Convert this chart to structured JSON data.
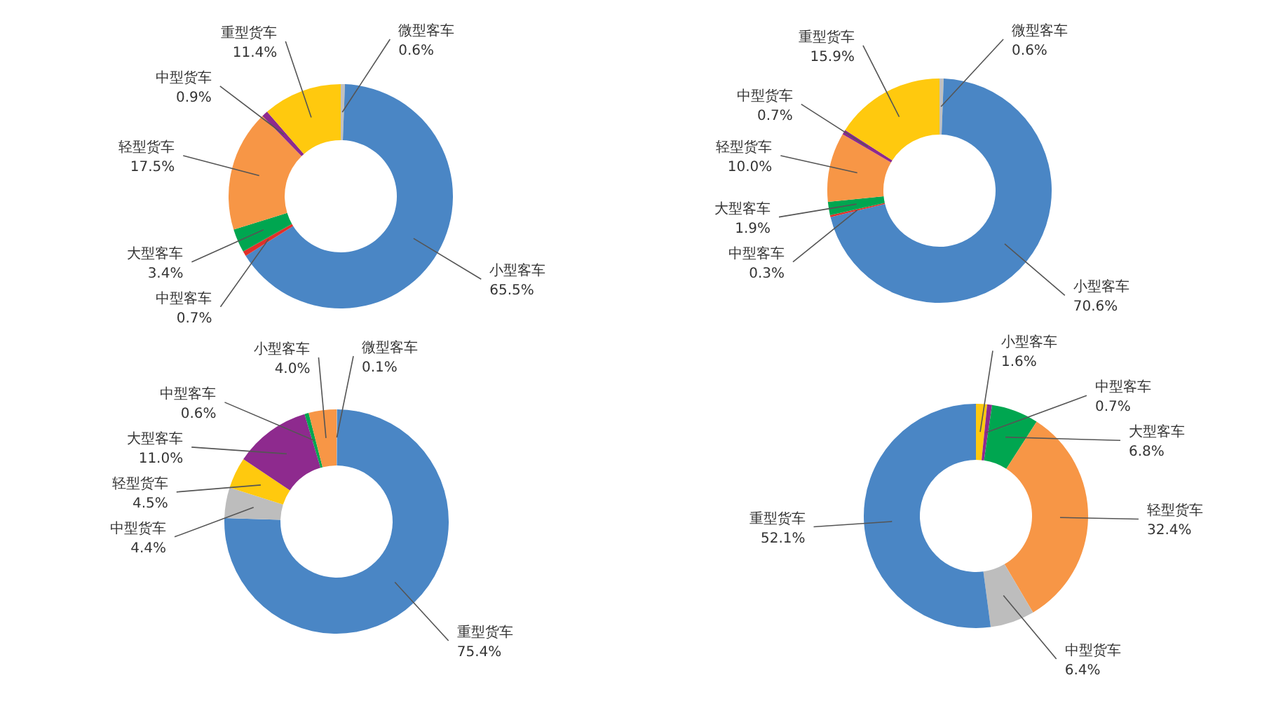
{
  "chart_data": [
    {
      "type": "donut",
      "categories": [
        "微型客车",
        "小型客车",
        "中型客车",
        "大型客车",
        "轻型货车",
        "中型货车",
        "重型货车"
      ],
      "values": [
        0.6,
        65.5,
        0.7,
        3.4,
        17.5,
        0.9,
        11.4
      ],
      "value_labels": [
        "0.6%",
        "65.5%",
        "0.7%",
        "3.4%",
        "17.5%",
        "0.9%",
        "11.4%"
      ],
      "colors": [
        "#c0c0c0",
        "#4a86c5",
        "#e0302a",
        "#00a650",
        "#f79646",
        "#8e2a8e",
        "#ffc90e"
      ]
    },
    {
      "type": "donut",
      "categories": [
        "微型客车",
        "小型客车",
        "中型客车",
        "大型客车",
        "轻型货车",
        "中型货车",
        "重型货车"
      ],
      "values": [
        0.6,
        70.6,
        0.3,
        1.9,
        10.0,
        0.7,
        15.9
      ],
      "value_labels": [
        "0.6%",
        "70.6%",
        "0.3%",
        "1.9%",
        "10.0%",
        "0.7%",
        "15.9%"
      ],
      "colors": [
        "#c0c0c0",
        "#4a86c5",
        "#e0302a",
        "#00a650",
        "#f79646",
        "#8e2a8e",
        "#ffc90e"
      ]
    },
    {
      "type": "donut",
      "categories": [
        "微型客车",
        "重型货车",
        "中型货车",
        "轻型货车",
        "大型客车",
        "中型客车",
        "小型客车"
      ],
      "values": [
        0.1,
        75.4,
        4.4,
        4.5,
        11.0,
        0.6,
        4.0
      ],
      "value_labels": [
        "0.1%",
        "75.4%",
        "4.4%",
        "4.5%",
        "11.0%",
        "0.6%",
        "4.0%"
      ],
      "colors": [
        "#c0c0c0",
        "#4a86c5",
        "#bdbdbd",
        "#ffc90e",
        "#8e2a8e",
        "#00a650",
        "#f79646"
      ]
    },
    {
      "type": "donut",
      "categories": [
        "小型客车",
        "中型客车",
        "大型客车",
        "轻型货车",
        "中型货车",
        "重型货车"
      ],
      "values": [
        1.6,
        0.7,
        6.8,
        32.4,
        6.4,
        52.1
      ],
      "value_labels": [
        "1.6%",
        "0.7%",
        "6.8%",
        "32.4%",
        "6.4%",
        "52.1%"
      ],
      "colors": [
        "#ffc90e",
        "#8e2a8e",
        "#00a650",
        "#f79646",
        "#bdbdbd",
        "#4a86c5"
      ]
    }
  ]
}
